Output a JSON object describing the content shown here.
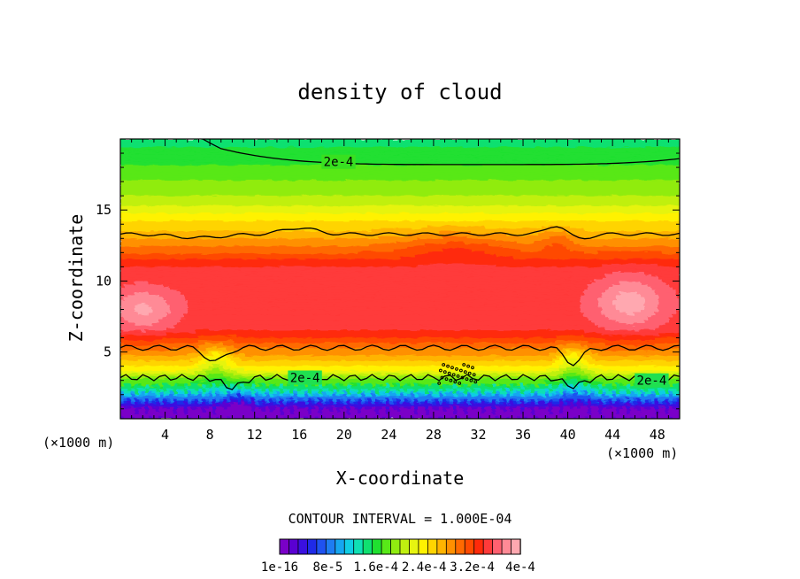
{
  "chart_data": {
    "type": "heatmap",
    "title": "density of cloud",
    "xlabel": "X-coordinate",
    "ylabel": "Z-coordinate",
    "x_unit_left": "(×1000 m)",
    "x_unit_right": "(×1000 m)",
    "xlim": [
      0,
      50
    ],
    "ylim": [
      0.3,
      20
    ],
    "x_ticks": [
      4,
      8,
      12,
      16,
      20,
      24,
      28,
      32,
      36,
      40,
      44,
      48
    ],
    "y_ticks": [
      5,
      10,
      15
    ],
    "contour_interval_text": "CONTOUR INTERVAL = 1.000E-04",
    "contour_line_labels": [
      "2e-4",
      "2e-4",
      "2e-4"
    ],
    "colorbar": {
      "labels": [
        "1e-16",
        "8e-5",
        "1.6e-4",
        "2.4e-4",
        "3.2e-4",
        "4e-4"
      ],
      "colors": [
        "#7a00c8",
        "#5a00d2",
        "#3a10e0",
        "#1f2ae8",
        "#1f52f0",
        "#1e7cf2",
        "#16a6f0",
        "#10cde4",
        "#10e0b4",
        "#10e070",
        "#20e030",
        "#58e818",
        "#90ec10",
        "#c0f010",
        "#e6f410",
        "#fff200",
        "#ffd400",
        "#ffb400",
        "#ff9000",
        "#ff6a00",
        "#ff4a00",
        "#ff2a0a",
        "#ff3a3a",
        "#ff6070",
        "#ff8a96",
        "#ffa8b0"
      ]
    }
  }
}
